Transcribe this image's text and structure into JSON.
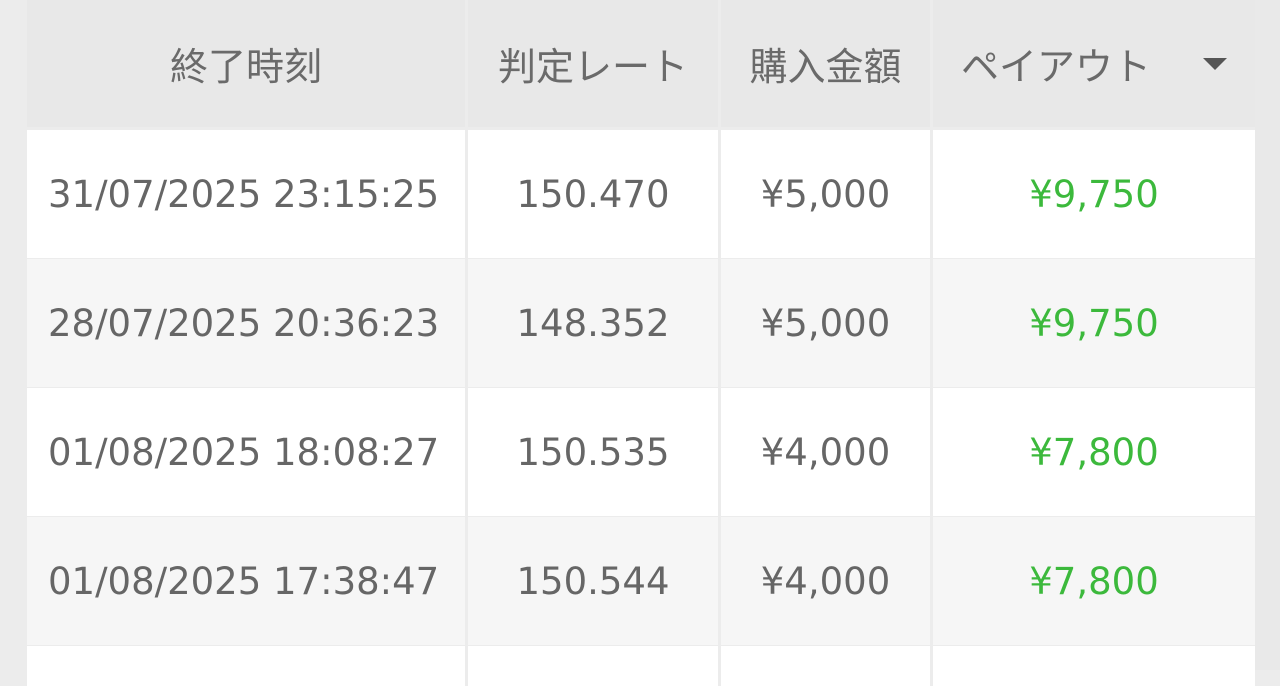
{
  "table": {
    "headers": [
      "終了時刻",
      "判定レート",
      "購入金額",
      "ペイアウト"
    ],
    "sort_icon": "caret-down-icon",
    "rows": [
      {
        "end_time": "31/07/2025 23:15:25",
        "rate": "150.470",
        "amount": "¥5,000",
        "payout": "¥9,750"
      },
      {
        "end_time": "28/07/2025 20:36:23",
        "rate": "148.352",
        "amount": "¥5,000",
        "payout": "¥9,750"
      },
      {
        "end_time": "01/08/2025 18:08:27",
        "rate": "150.535",
        "amount": "¥4,000",
        "payout": "¥7,800"
      },
      {
        "end_time": "01/08/2025 17:38:47",
        "rate": "150.544",
        "amount": "¥4,000",
        "payout": "¥7,800"
      }
    ]
  },
  "colors": {
    "payout": "#3cb93c",
    "header_bg": "#e8e8e8",
    "alt_row_bg": "#f6f6f6"
  }
}
